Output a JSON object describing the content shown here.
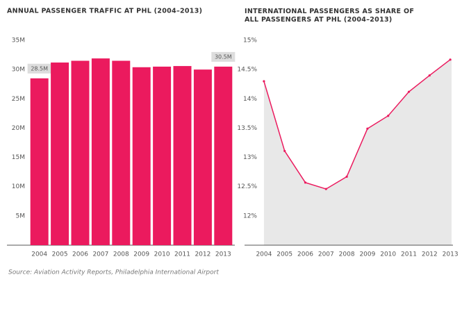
{
  "chart_data": [
    {
      "type": "bar",
      "title": "ANNUAL PASSENGER TRAFFIC AT PHL (2004–2013)",
      "categories": [
        "2004",
        "2005",
        "2006",
        "2007",
        "2008",
        "2009",
        "2010",
        "2011",
        "2012",
        "2013"
      ],
      "values": [
        28.5,
        31.2,
        31.5,
        31.9,
        31.5,
        30.4,
        30.5,
        30.6,
        30.0,
        30.5
      ],
      "value_labels": [
        "28.5M",
        null,
        null,
        null,
        null,
        null,
        null,
        null,
        null,
        "30.5M"
      ],
      "color": "#eb1a5e",
      "ylim": [
        0,
        35
      ],
      "yticks": [
        {
          "value": 5,
          "label": "5M"
        },
        {
          "value": 10,
          "label": "10M"
        },
        {
          "value": 15,
          "label": "15M"
        },
        {
          "value": 20,
          "label": "20M"
        },
        {
          "value": 25,
          "label": "25M"
        },
        {
          "value": 30,
          "label": "30M"
        },
        {
          "value": 35,
          "label": "35M"
        }
      ],
      "grid": false
    },
    {
      "type": "line",
      "title": "INTERNATIONAL PASSENGERS AS SHARE OF ALL PASSENGERS AT PHL (2004–2013)",
      "categories": [
        "2004",
        "2005",
        "2006",
        "2007",
        "2008",
        "2009",
        "2010",
        "2011",
        "2012",
        "2013"
      ],
      "values": [
        14.3,
        13.11,
        12.57,
        12.46,
        12.67,
        13.49,
        13.71,
        14.12,
        14.4,
        14.67
      ],
      "color": "#eb1a5e",
      "ylim": [
        11.5,
        15
      ],
      "yticks": [
        {
          "value": 12,
          "label": "12%"
        },
        {
          "value": 12.5,
          "label": "12.5%"
        },
        {
          "value": 13,
          "label": "13%"
        },
        {
          "value": 13.5,
          "label": "13.5%"
        },
        {
          "value": 14,
          "label": "14%"
        },
        {
          "value": 14.5,
          "label": "14.5%"
        },
        {
          "value": 15,
          "label": "15%"
        }
      ],
      "grid": false
    }
  ],
  "source": "Source: Aviation Activity Reports, Philadelphia International Airport"
}
